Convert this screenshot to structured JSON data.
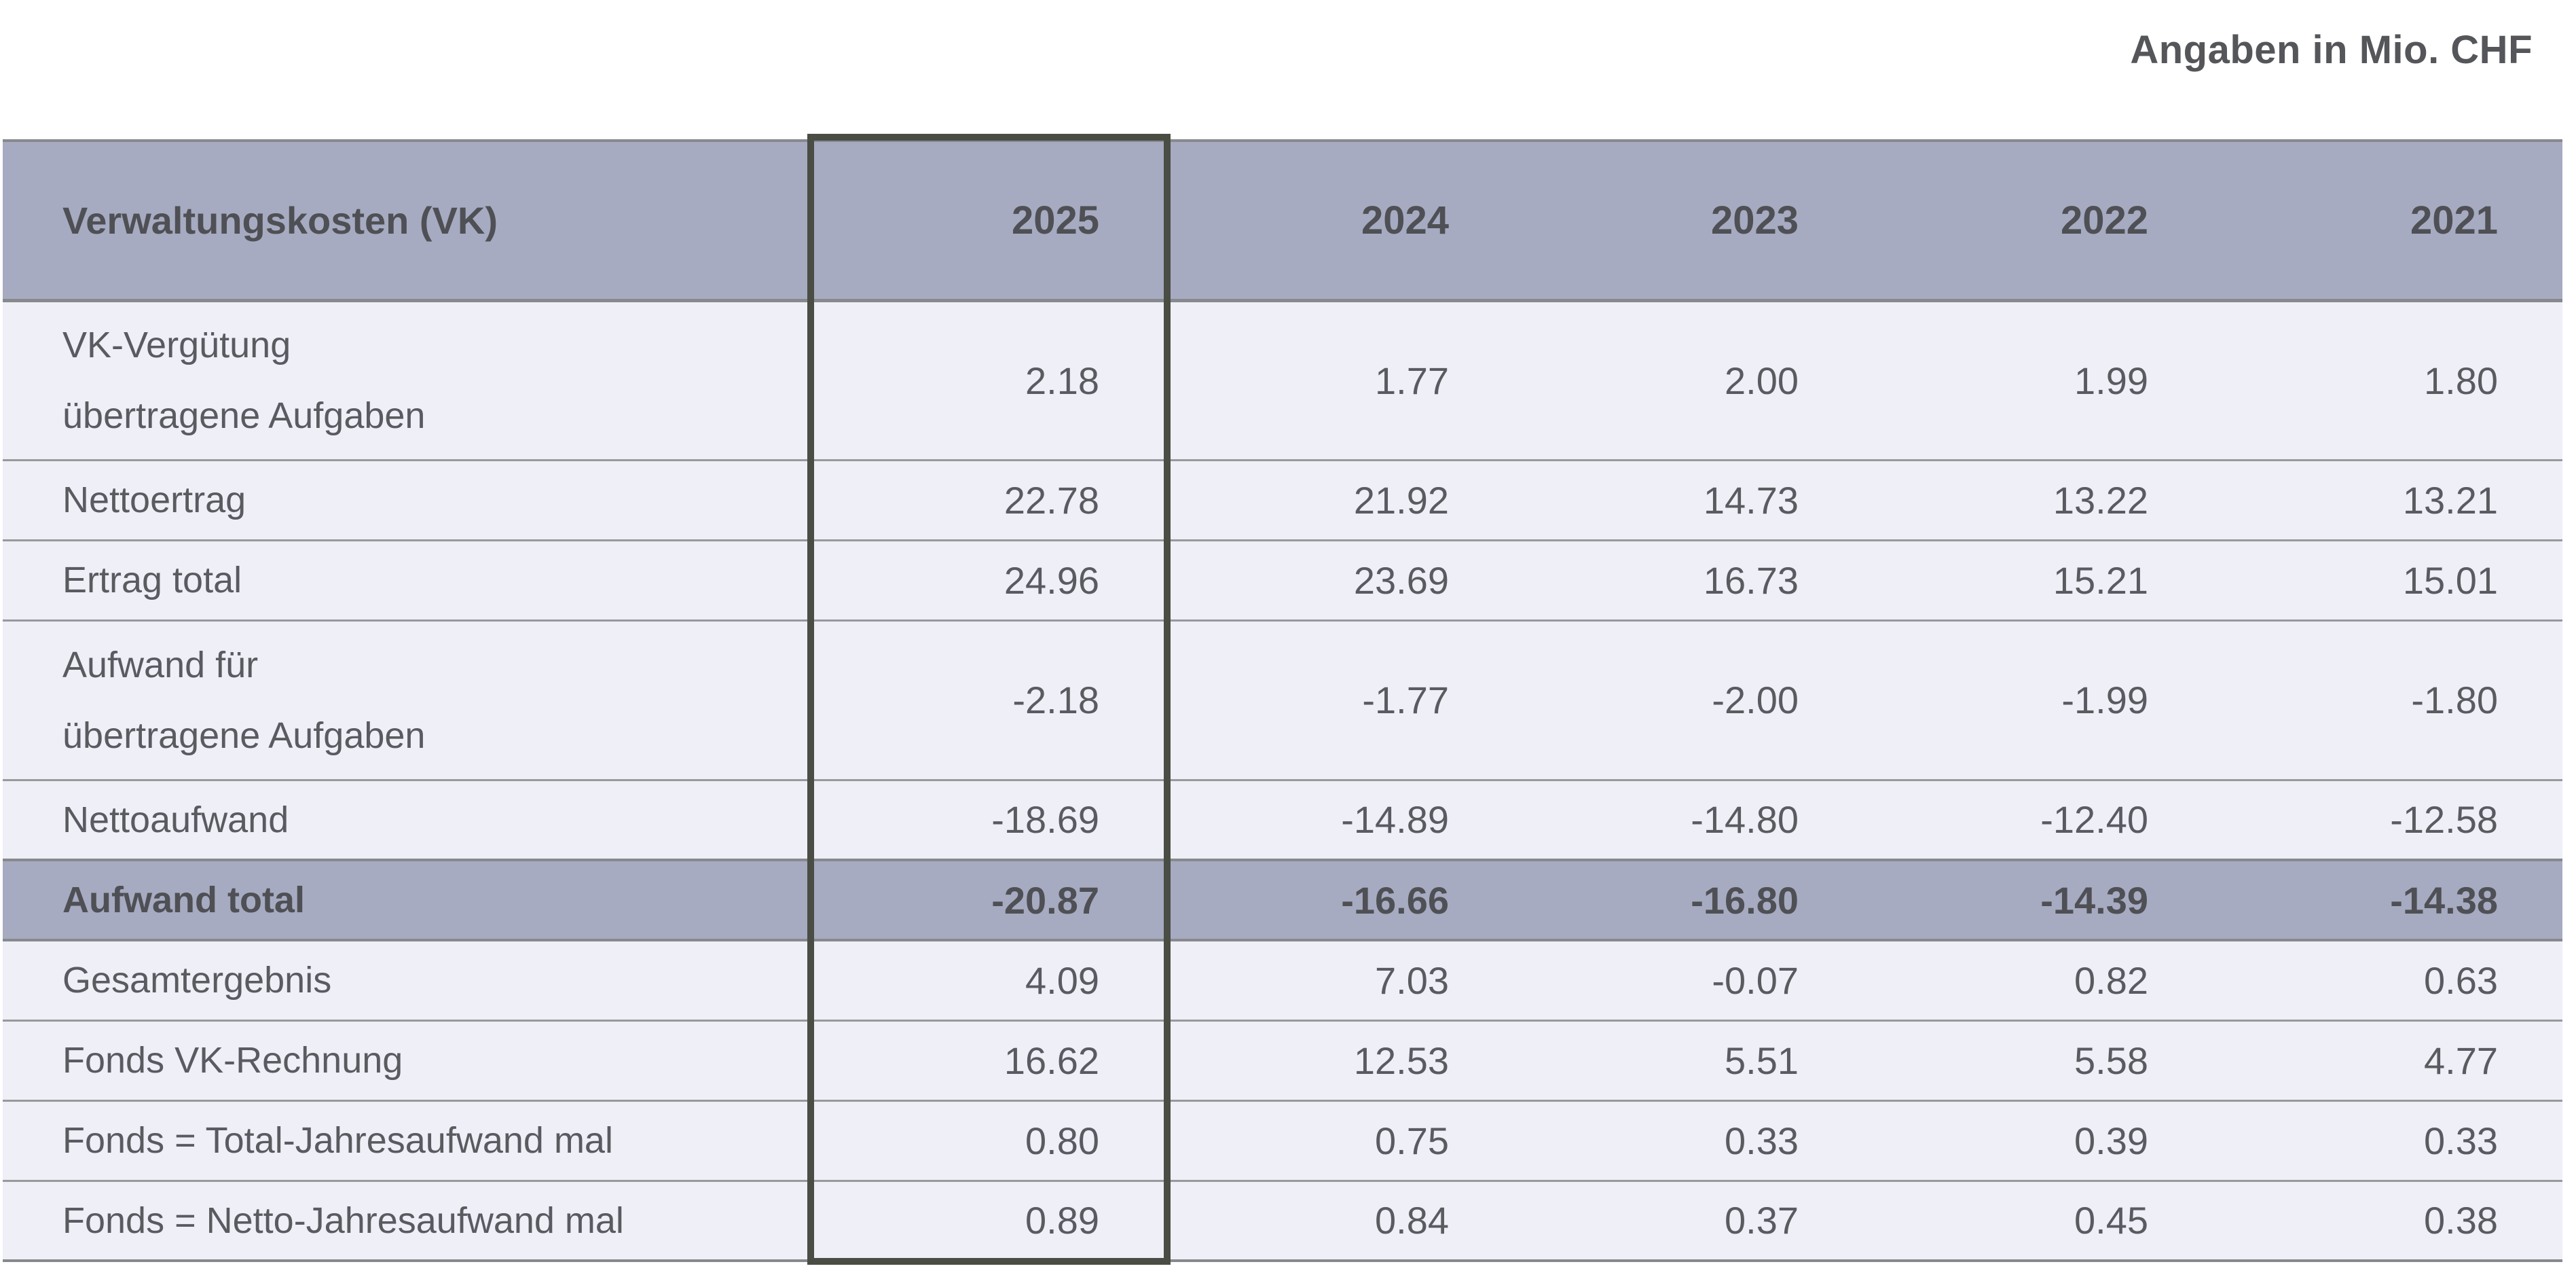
{
  "note": "Angaben in Mio. CHF",
  "table": {
    "header": {
      "label": "Verwaltungskosten (VK)",
      "years": [
        "2025",
        "2024",
        "2023",
        "2022",
        "2021"
      ]
    },
    "rows": [
      {
        "lines": [
          "VK-Vergütung",
          "übertragene Aufgaben"
        ],
        "values": [
          "2.18",
          "1.77",
          "2.00",
          "1.99",
          "1.80"
        ]
      },
      {
        "lines": [
          "Nettoertrag"
        ],
        "values": [
          "22.78",
          "21.92",
          "14.73",
          "13.22",
          "13.21"
        ]
      },
      {
        "lines": [
          "Ertrag total"
        ],
        "values": [
          "24.96",
          "23.69",
          "16.73",
          "15.21",
          "15.01"
        ]
      },
      {
        "lines": [
          "Aufwand für",
          "übertragene Aufgaben"
        ],
        "values": [
          "-2.18",
          "-1.77",
          "-2.00",
          "-1.99",
          "-1.80"
        ]
      },
      {
        "lines": [
          "Nettoaufwand"
        ],
        "values": [
          "-18.69",
          "-14.89",
          "-14.80",
          "-12.40",
          "-12.58"
        ]
      },
      {
        "lines": [
          "Aufwand total"
        ],
        "values": [
          "-20.87",
          "-16.66",
          "-16.80",
          "-14.39",
          "-14.38"
        ]
      },
      {
        "lines": [
          "Gesamtergebnis"
        ],
        "values": [
          "4.09",
          "7.03",
          "-0.07",
          "0.82",
          "0.63"
        ]
      },
      {
        "lines": [
          "Fonds VK-Rechnung"
        ],
        "values": [
          "16.62",
          "12.53",
          "5.51",
          "5.58",
          "4.77"
        ]
      },
      {
        "lines": [
          "Fonds = Total-Jahresaufwand mal"
        ],
        "values": [
          "0.80",
          "0.75",
          "0.33",
          "0.39",
          "0.33"
        ]
      },
      {
        "lines": [
          "Fonds = Netto-Jahresaufwand mal"
        ],
        "values": [
          "0.89",
          "0.84",
          "0.37",
          "0.45",
          "0.38"
        ]
      }
    ]
  },
  "colors": {
    "header_bg": "#a6abc1",
    "row_bg": "#eeeff7",
    "text": "#5a5b60",
    "bold_text": "#4f5055",
    "separator": "#97999c",
    "strong_separator": "#87898d",
    "highlight_border": "#4a4d44"
  }
}
